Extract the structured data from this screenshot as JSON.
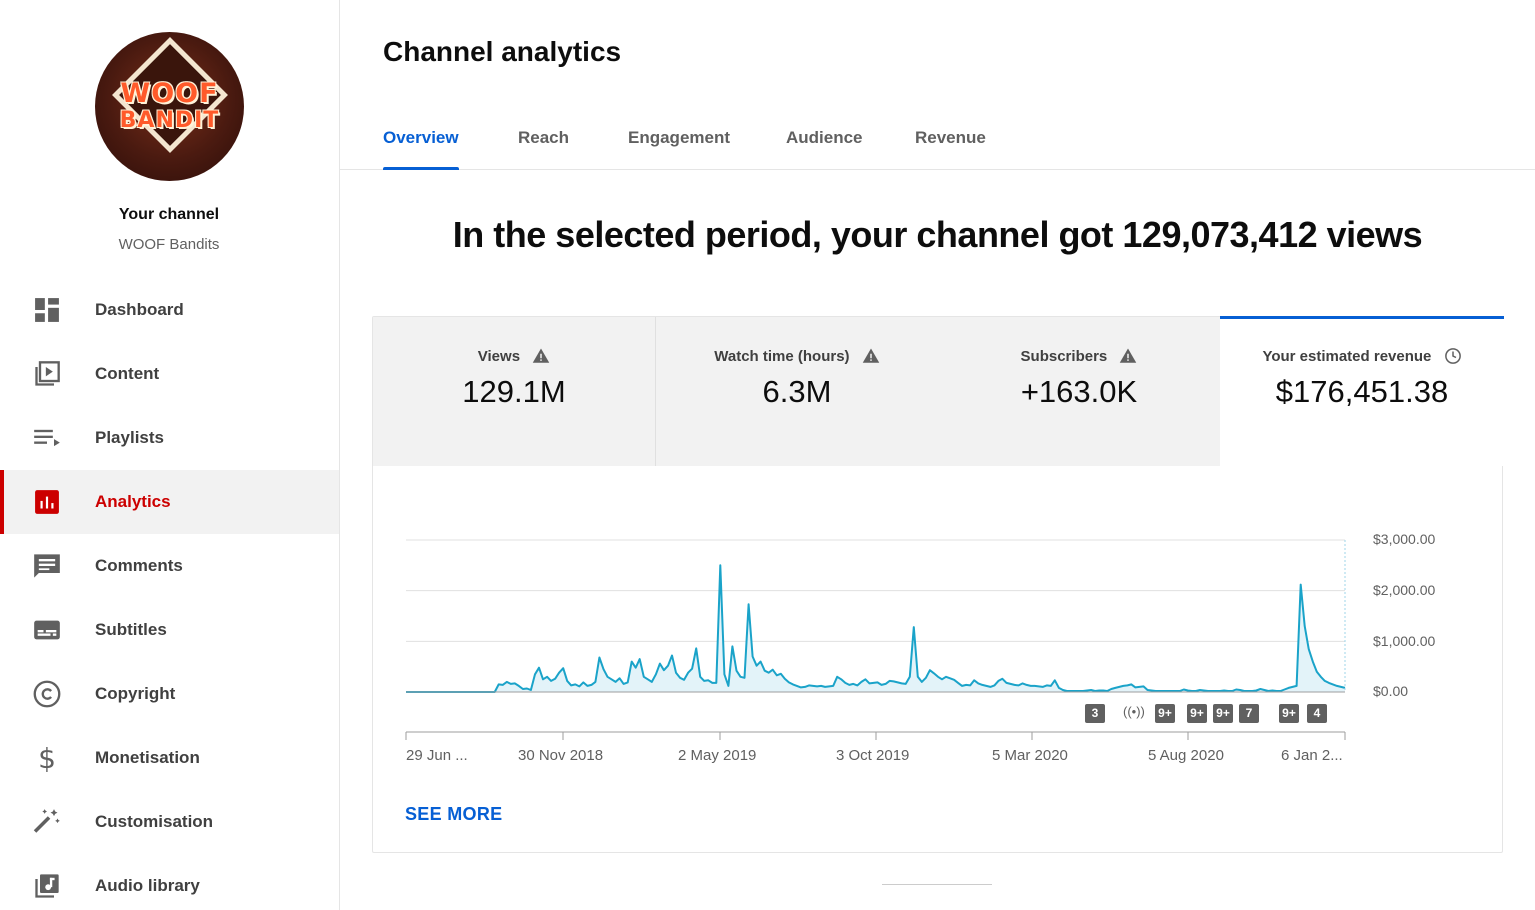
{
  "sidebar": {
    "avatar": {
      "line1": "WOOF",
      "line2": "BANDIT"
    },
    "channel_title": "Your channel",
    "channel_name": "WOOF Bandits",
    "items": [
      {
        "label": "Dashboard",
        "icon": "dashboard-icon"
      },
      {
        "label": "Content",
        "icon": "content-icon"
      },
      {
        "label": "Playlists",
        "icon": "playlists-icon"
      },
      {
        "label": "Analytics",
        "icon": "analytics-icon",
        "active": true
      },
      {
        "label": "Comments",
        "icon": "comments-icon"
      },
      {
        "label": "Subtitles",
        "icon": "subtitles-icon"
      },
      {
        "label": "Copyright",
        "icon": "copyright-icon"
      },
      {
        "label": "Monetisation",
        "icon": "monetisation-icon"
      },
      {
        "label": "Customisation",
        "icon": "customisation-icon"
      },
      {
        "label": "Audio library",
        "icon": "audio-library-icon"
      }
    ]
  },
  "header": {
    "title": "Channel analytics"
  },
  "tabs": [
    {
      "label": "Overview",
      "active": true
    },
    {
      "label": "Reach"
    },
    {
      "label": "Engagement"
    },
    {
      "label": "Audience"
    },
    {
      "label": "Revenue"
    }
  ],
  "headline": "In the selected period, your channel got 129,073,412 views",
  "metrics": [
    {
      "label": "Views",
      "value": "129.1M",
      "icon": "warning-icon"
    },
    {
      "label": "Watch time (hours)",
      "value": "6.3M",
      "icon": "warning-icon"
    },
    {
      "label": "Subscribers",
      "value": "+163.0K",
      "icon": "warning-icon"
    },
    {
      "label": "Your estimated revenue",
      "value": "$176,451.38",
      "icon": "clock-icon",
      "selected": true
    }
  ],
  "markers": [
    "3",
    "9+",
    "9+",
    "9+",
    "7",
    "9+",
    "4"
  ],
  "live_marker": "((•))",
  "see_more": "SEE MORE",
  "colors": {
    "accent": "#065fd4",
    "brand_red": "#cc0000",
    "line": "#1aa3c9",
    "fill": "#e3f3f9"
  },
  "chart_data": {
    "type": "area",
    "ylim": [
      0,
      3000
    ],
    "y_ticks": [
      "$3,000.00",
      "$2,000.00",
      "$1,000.00",
      "$0.00"
    ],
    "x_ticks": [
      "29 Jun ...",
      "30 Nov 2018",
      "2 May 2019",
      "3 Oct 2019",
      "5 Mar 2020",
      "5 Aug 2020",
      "6 Jan 2..."
    ],
    "series": [
      {
        "values": [
          0,
          0,
          0,
          0,
          0,
          0,
          0,
          0,
          0,
          0,
          0,
          0,
          0,
          0,
          0,
          0,
          0,
          0,
          0,
          0,
          0,
          0,
          0,
          150,
          140,
          200,
          160,
          170,
          120,
          60,
          70,
          40,
          350,
          480,
          250,
          300,
          220,
          260,
          380,
          470,
          220,
          130,
          150,
          110,
          190,
          120,
          140,
          200,
          680,
          450,
          300,
          250,
          200,
          270,
          160,
          190,
          600,
          480,
          650,
          300,
          250,
          200,
          350,
          560,
          430,
          520,
          720,
          380,
          280,
          240,
          380,
          460,
          860,
          300,
          220,
          230,
          180,
          180,
          2500,
          350,
          120,
          900,
          420,
          300,
          280,
          1730,
          700,
          520,
          600,
          420,
          380,
          440,
          330,
          360,
          260,
          190,
          150,
          120,
          90,
          100,
          130,
          120,
          110,
          120,
          100,
          110,
          120,
          300,
          250,
          180,
          140,
          160,
          130,
          200,
          250,
          170,
          180,
          190,
          140,
          160,
          220,
          210,
          190,
          170,
          160,
          300,
          1280,
          300,
          200,
          280,
          430,
          370,
          300,
          250,
          300,
          270,
          240,
          180,
          120,
          140,
          130,
          230,
          170,
          140,
          120,
          100,
          130,
          220,
          260,
          180,
          160,
          140,
          130,
          170,
          140,
          120,
          120,
          110,
          100,
          130,
          120,
          230,
          80,
          40,
          20,
          20,
          20,
          20,
          20,
          30,
          40,
          20,
          30,
          30,
          20,
          60,
          80,
          100,
          120,
          130,
          150,
          90,
          100,
          110,
          40,
          30,
          20,
          20,
          20,
          20,
          20,
          20,
          20,
          50,
          30,
          20,
          20,
          40,
          30,
          20,
          20,
          20,
          20,
          30,
          20,
          20,
          50,
          40,
          20,
          20,
          20,
          30,
          60,
          40,
          20,
          30,
          20,
          20,
          50,
          80,
          100,
          120,
          2120,
          1300,
          850,
          600,
          400,
          300,
          220,
          180,
          150,
          120,
          100,
          80
        ]
      }
    ]
  }
}
